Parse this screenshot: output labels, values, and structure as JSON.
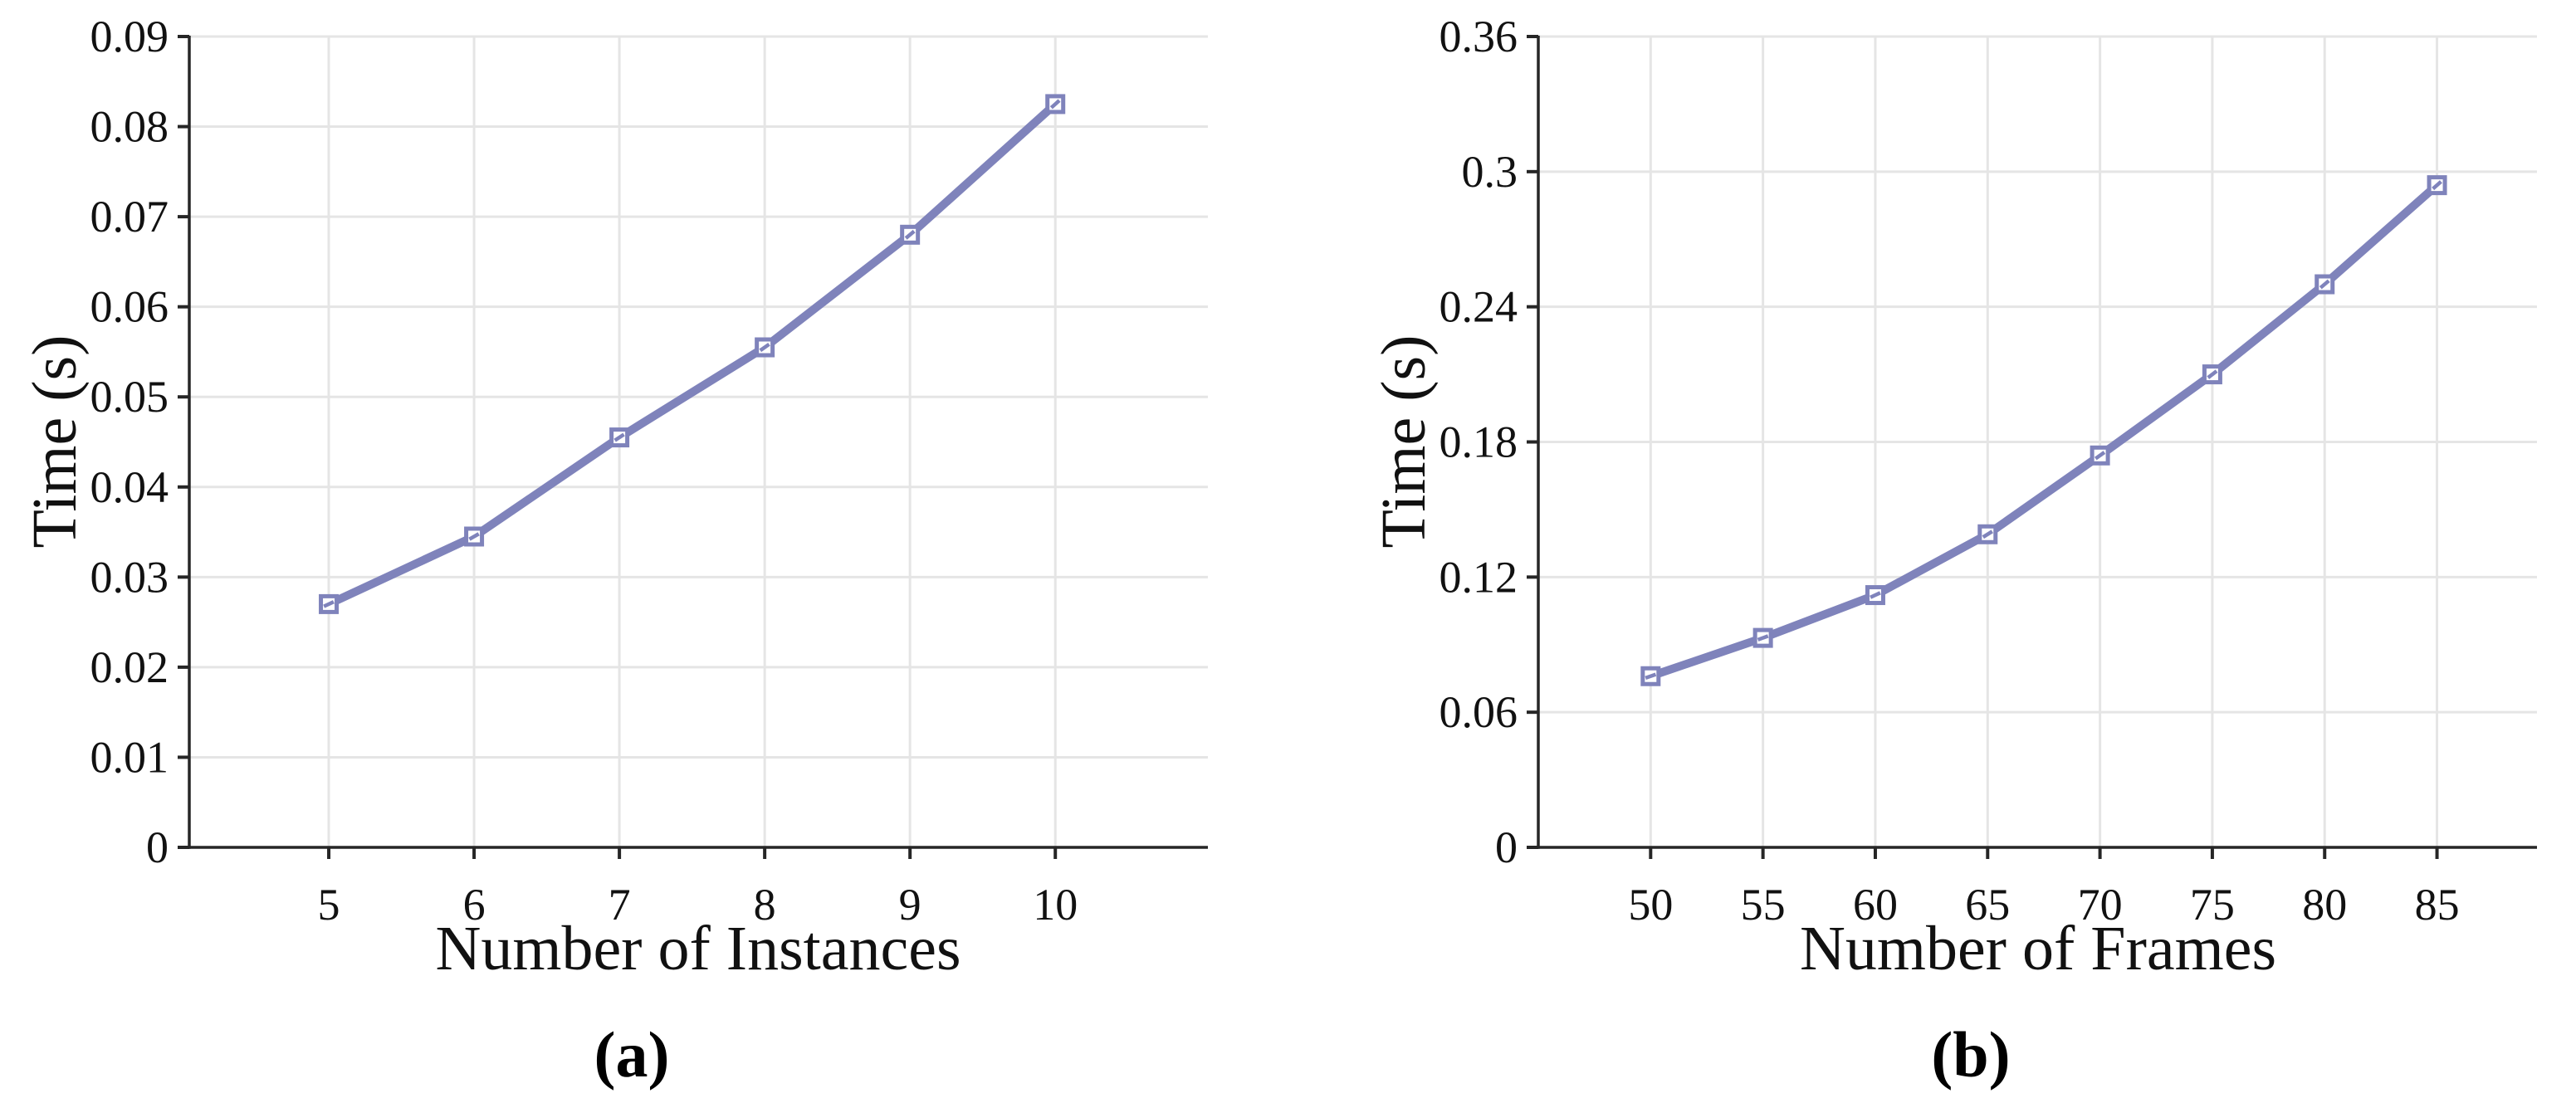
{
  "figure": {
    "background": "#ffffff"
  },
  "colors": {
    "line": "#7f83bb",
    "marker_fill": "#ffffff",
    "grid": "#e5e5e5",
    "axis": "#262626",
    "text": "#111111"
  },
  "chart_data": [
    {
      "id": "a",
      "type": "line",
      "caption": "(a)",
      "xlabel": "Number of Instances",
      "ylabel": "Time (s)",
      "x": [
        5,
        6,
        7,
        8,
        9,
        10
      ],
      "y": [
        0.027,
        0.0345,
        0.0455,
        0.0555,
        0.068,
        0.0825
      ],
      "xlim": [
        4.04,
        11.05
      ],
      "ylim": [
        0,
        0.09
      ],
      "xticks": [
        5,
        6,
        7,
        8,
        9,
        10
      ],
      "xtick_labels": [
        "5",
        "6",
        "7",
        "8",
        "9",
        "10"
      ],
      "yticks": [
        0,
        0.01,
        0.02,
        0.03,
        0.04,
        0.05,
        0.06,
        0.07,
        0.08,
        0.09
      ],
      "ytick_labels": [
        "0",
        "0.01",
        "0.02",
        "0.03",
        "0.04",
        "0.05",
        "0.06",
        "0.07",
        "0.08",
        "0.09"
      ],
      "grid": true,
      "legend": null,
      "marker": "square",
      "line_color": "#7f83bb"
    },
    {
      "id": "b",
      "type": "line",
      "caption": "(b)",
      "xlabel": "Number of Frames",
      "ylabel": "Time (s)",
      "x": [
        50,
        55,
        60,
        65,
        70,
        75,
        80,
        85
      ],
      "y": [
        0.076,
        0.093,
        0.112,
        0.139,
        0.174,
        0.21,
        0.25,
        0.294
      ],
      "xlim": [
        45.0,
        89.45
      ],
      "ylim": [
        0,
        0.36
      ],
      "xticks": [
        50,
        55,
        60,
        65,
        70,
        75,
        80,
        85
      ],
      "xtick_labels": [
        "50",
        "55",
        "60",
        "65",
        "70",
        "75",
        "80",
        "85"
      ],
      "yticks": [
        0,
        0.06,
        0.12,
        0.18,
        0.24,
        0.3,
        0.36
      ],
      "ytick_labels": [
        "0",
        "0.06",
        "0.12",
        "0.18",
        "0.24",
        "0.3",
        "0.36"
      ],
      "grid": true,
      "legend": null,
      "marker": "square",
      "line_color": "#7f83bb"
    }
  ]
}
